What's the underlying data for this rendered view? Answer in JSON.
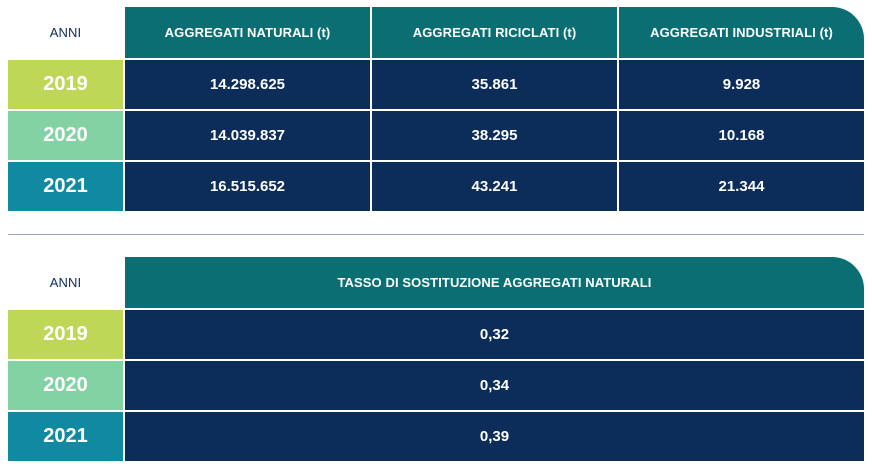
{
  "table_top": {
    "headers": [
      "ANNI",
      "AGGREGATI NATURALI (t)",
      "AGGREGATI RICICLATI (t)",
      "AGGREGATI INDUSTRIALI (t)"
    ],
    "rows": [
      {
        "year": "2019",
        "naturali": "14.298.625",
        "riciclati": "35.861",
        "industriali": "9.928"
      },
      {
        "year": "2020",
        "naturali": "14.039.837",
        "riciclati": "38.295",
        "industriali": "10.168"
      },
      {
        "year": "2021",
        "naturali": "16.515.652",
        "riciclati": "43.241",
        "industriali": "21.344"
      }
    ]
  },
  "table_bottom": {
    "headers": [
      "ANNI",
      "TASSO DI SOSTITUZIONE AGGREGATI NATURALI"
    ],
    "rows": [
      {
        "year": "2019",
        "tasso": "0,32"
      },
      {
        "year": "2020",
        "tasso": "0,34"
      },
      {
        "year": "2021",
        "tasso": "0,39"
      }
    ]
  },
  "colors": {
    "header_teal": "#0a6e73",
    "cell_navy": "#0c2c5a",
    "year_2019": "#bfd757",
    "year_2020": "#82d2a4",
    "year_2021": "#0f8aa0",
    "anni_text": "#0d2a5c"
  }
}
